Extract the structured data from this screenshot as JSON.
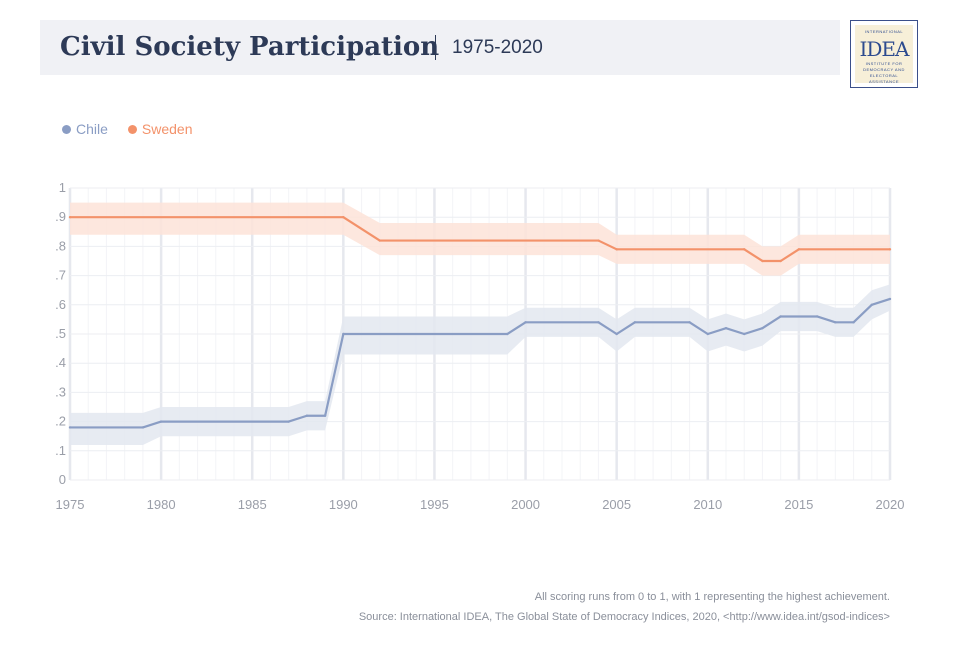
{
  "header": {
    "title": "Civil Society Participation",
    "period": "1975-2020"
  },
  "logo": {
    "line1": "INTERNATIONAL",
    "word": "IDEA",
    "line2": "INSTITUTE FOR",
    "line3": "DEMOCRACY AND",
    "line4": "ELECTORAL",
    "line5": "ASSISTANCE"
  },
  "footer": {
    "note": "All scoring runs from 0 to 1, with 1 representing the highest achievement.",
    "source": "Source: International IDEA, The Global State of Democracy Indices, 2020, <http://www.idea.int/gsod-indices>"
  },
  "colors": {
    "chile": "#8a9dc4",
    "chile_band": "#e3e7f0",
    "sweden": "#f3926a",
    "sweden_band": "#fde3d8",
    "axis_text": "#9a9ea8",
    "grid": "#eceef2"
  },
  "chart_data": {
    "type": "line",
    "title": "Civil Society Participation",
    "xlim": [
      1975,
      2020
    ],
    "ylim": [
      0,
      1
    ],
    "x_ticks": [
      "1975",
      "1980",
      "1985",
      "1990",
      "1995",
      "2000",
      "2005",
      "2010",
      "2015",
      "2020"
    ],
    "y_ticks": [
      "0",
      ".1",
      ".2",
      ".3",
      ".4",
      ".5",
      ".6",
      ".7",
      ".8",
      ".9",
      "1"
    ],
    "grid": true,
    "legend": "top-left",
    "series": [
      {
        "name": "Chile",
        "color": "#8a9dc4",
        "x": [
          1975,
          1979,
          1980,
          1987,
          1988,
          1989,
          1990,
          1999,
          2000,
          2004,
          2005,
          2006,
          2009,
          2010,
          2011,
          2012,
          2013,
          2014,
          2016,
          2017,
          2018,
          2019,
          2020
        ],
        "y": [
          0.18,
          0.18,
          0.2,
          0.2,
          0.22,
          0.22,
          0.5,
          0.5,
          0.54,
          0.54,
          0.5,
          0.54,
          0.54,
          0.5,
          0.52,
          0.5,
          0.52,
          0.56,
          0.56,
          0.54,
          0.54,
          0.6,
          0.62
        ],
        "lower": [
          0.12,
          0.12,
          0.15,
          0.15,
          0.17,
          0.17,
          0.43,
          0.43,
          0.49,
          0.49,
          0.44,
          0.49,
          0.49,
          0.44,
          0.46,
          0.44,
          0.46,
          0.51,
          0.51,
          0.49,
          0.49,
          0.55,
          0.58
        ],
        "upper": [
          0.23,
          0.23,
          0.25,
          0.25,
          0.27,
          0.27,
          0.56,
          0.56,
          0.59,
          0.59,
          0.55,
          0.59,
          0.59,
          0.55,
          0.57,
          0.55,
          0.57,
          0.61,
          0.61,
          0.59,
          0.59,
          0.65,
          0.67
        ]
      },
      {
        "name": "Sweden",
        "color": "#f3926a",
        "x": [
          1975,
          1990,
          1992,
          2004,
          2005,
          2012,
          2013,
          2014,
          2015,
          2020
        ],
        "y": [
          0.9,
          0.9,
          0.82,
          0.82,
          0.79,
          0.79,
          0.75,
          0.75,
          0.79,
          0.79
        ],
        "lower": [
          0.84,
          0.84,
          0.77,
          0.77,
          0.74,
          0.74,
          0.7,
          0.7,
          0.74,
          0.74
        ],
        "upper": [
          0.95,
          0.95,
          0.88,
          0.88,
          0.84,
          0.84,
          0.8,
          0.8,
          0.84,
          0.84
        ]
      }
    ]
  }
}
